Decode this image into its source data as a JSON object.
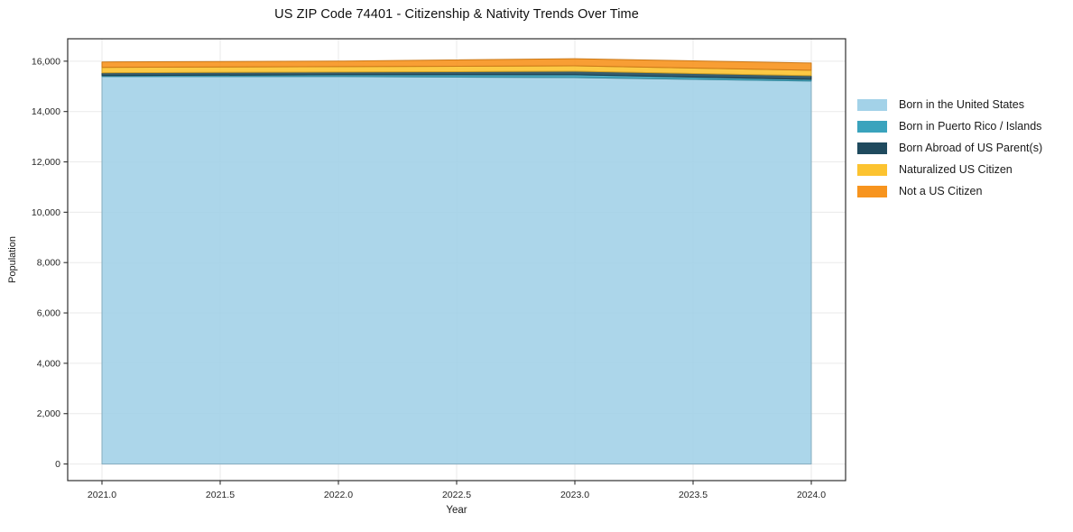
{
  "chart_data": {
    "type": "area",
    "stacked": true,
    "title": "US ZIP Code 74401 - Citizenship & Nativity Trends Over Time",
    "xlabel": "Year",
    "ylabel": "Population",
    "x": [
      2021,
      2022,
      2023,
      2024
    ],
    "series": [
      {
        "name": "Born in the United States",
        "color": "#a3d2e8",
        "values": [
          15390,
          15390,
          15350,
          15210
        ]
      },
      {
        "name": "Born in Puerto Rico / Islands",
        "color": "#3aa3bd",
        "values": [
          40,
          70,
          110,
          70
        ]
      },
      {
        "name": "Born Abroad of US Parent(s)",
        "color": "#1f4a5e",
        "values": [
          110,
          110,
          140,
          145
        ]
      },
      {
        "name": "Naturalized US Citizen",
        "color": "#fcc330",
        "values": [
          215,
          215,
          215,
          215
        ]
      },
      {
        "name": "Not a US Citizen",
        "color": "#f7941e",
        "values": [
          215,
          215,
          285,
          285
        ]
      }
    ],
    "totals": [
      15970,
      16000,
      16100,
      15925
    ],
    "xlim": [
      2020.855,
      2024.145
    ],
    "ylim": [
      -660,
      16890
    ],
    "xticks": [
      2021.0,
      2021.5,
      2022.0,
      2022.5,
      2023.0,
      2023.5,
      2024.0
    ],
    "xtick_labels": [
      "2021.0",
      "2021.5",
      "2022.0",
      "2022.5",
      "2023.0",
      "2023.5",
      "2024.0"
    ],
    "yticks": [
      0,
      2000,
      4000,
      6000,
      8000,
      10000,
      12000,
      14000,
      16000
    ],
    "ytick_labels": [
      "0",
      "2,000",
      "4,000",
      "6,000",
      "8,000",
      "10,000",
      "12,000",
      "14,000",
      "16,000"
    ],
    "grid": true,
    "legend_position": "right-outside",
    "style": {
      "grid_color": "#eaeaea",
      "spine_color": "#2e2e2e",
      "tick_text_color": "#262626",
      "background": "#ffffff"
    }
  }
}
